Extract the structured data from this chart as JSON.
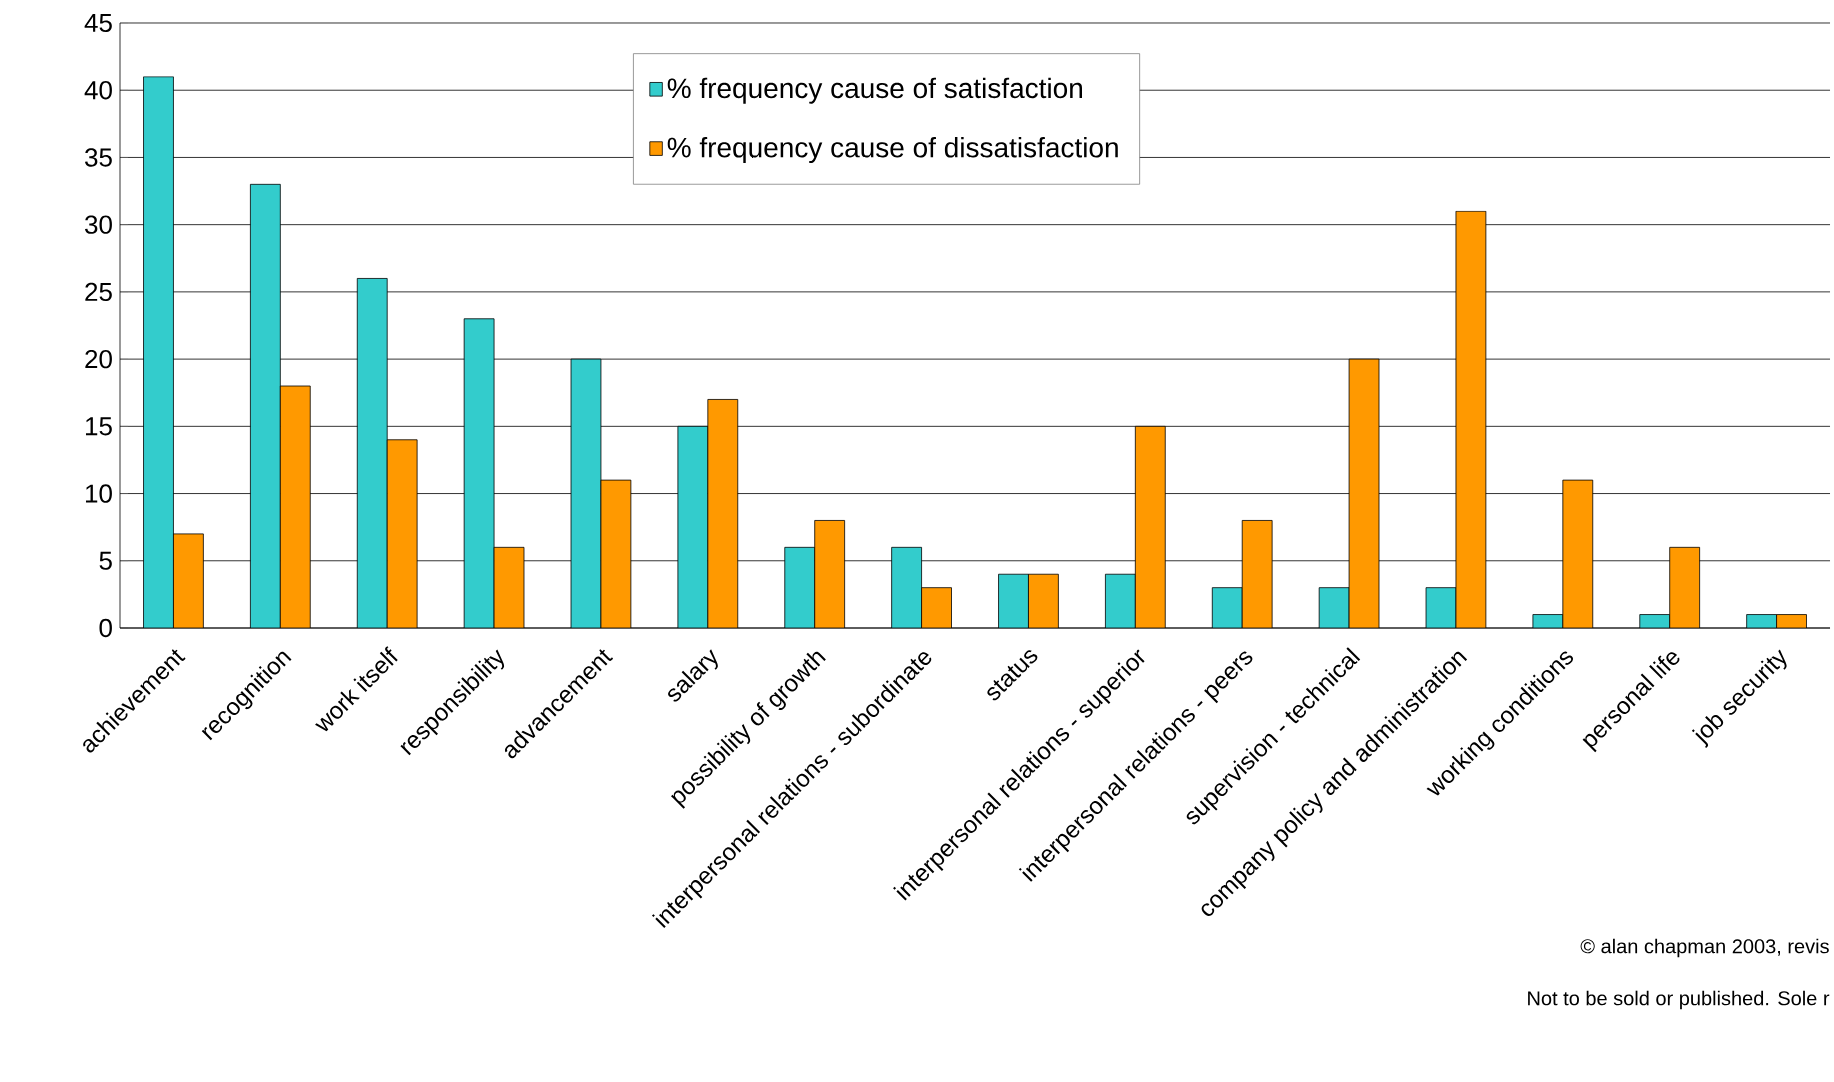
{
  "chart_data": {
    "type": "bar",
    "categories": [
      "achievement",
      "recognition",
      "work itself",
      "responsibility",
      "advancement",
      "salary",
      "possibility of growth",
      "interpersonal relations - subordinate",
      "status",
      "interpersonal relations - superior",
      "interpersonal relations - peers",
      "supervision - technical",
      "company policy and administration",
      "working conditions",
      "personal life",
      "job security"
    ],
    "series": [
      {
        "name": "% frequency cause of satisfaction",
        "color": "#33cccc",
        "values": [
          41,
          33,
          26,
          23,
          20,
          15,
          6,
          6,
          4,
          4,
          3,
          3,
          3,
          1,
          1,
          1
        ]
      },
      {
        "name": "% frequency cause of dissatisfaction",
        "color": "#ff9900",
        "values": [
          7,
          18,
          14,
          6,
          11,
          17,
          8,
          3,
          4,
          15,
          8,
          20,
          31,
          11,
          6,
          1
        ]
      }
    ],
    "ylim": [
      0,
      45
    ],
    "yticks": [
      0,
      5,
      10,
      15,
      20,
      25,
      30,
      35,
      40,
      45
    ],
    "grid": "y",
    "legend": "top",
    "annotations": [
      "© alan chapman 2003, revis",
      "Not to be sold or published. Sole r"
    ]
  }
}
